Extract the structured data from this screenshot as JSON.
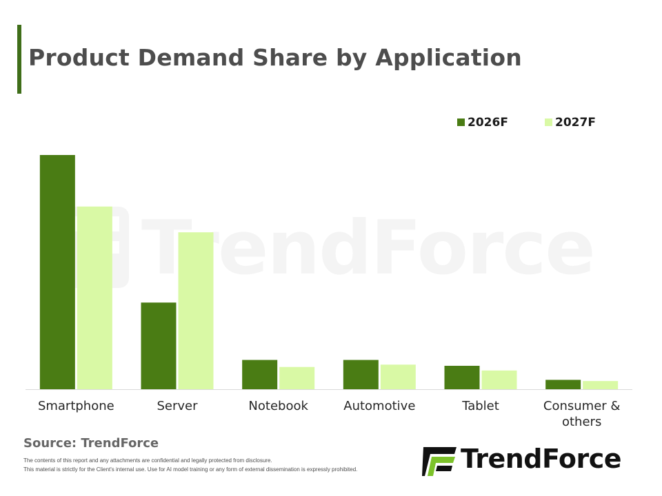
{
  "header": {
    "title": "Product Demand Share by Application"
  },
  "footer": {
    "source": "Source: TrendForce",
    "disclaimer_line1": "The contents of this report and any attachments are confidential and legally protected from disclosure.",
    "disclaimer_line2": "This material is strictly for the Client's internal use. Use for AI model training or any form of external dissemination is expressly prohibited."
  },
  "logo": {
    "text": "TrendForce",
    "icon": "trendforce-logo-mark"
  },
  "watermark": {
    "text": "TrendForce"
  },
  "colors": {
    "series_2026": "#4a7c14",
    "series_2027": "#d9f9a5",
    "accent": "#3f6e19"
  },
  "chart_data": {
    "type": "bar",
    "title": "Product Demand Share by Application",
    "xlabel": "",
    "ylabel": "",
    "ylim": [
      0,
      100
    ],
    "grid": false,
    "legend_position": "top-right",
    "categories": [
      [
        "Smartphone"
      ],
      [
        "Server"
      ],
      [
        "Notebook"
      ],
      [
        "Automotive"
      ],
      [
        "Tablet"
      ],
      [
        "Consumer &",
        "others"
      ]
    ],
    "series": [
      {
        "name": "2026F",
        "color": "#4a7c14",
        "values": [
          100,
          37,
          12.5,
          12.5,
          10,
          4
        ]
      },
      {
        "name": "2027F",
        "color": "#d9f9a5",
        "values": [
          78,
          67,
          9.5,
          10.5,
          8,
          3.5
        ]
      }
    ]
  }
}
